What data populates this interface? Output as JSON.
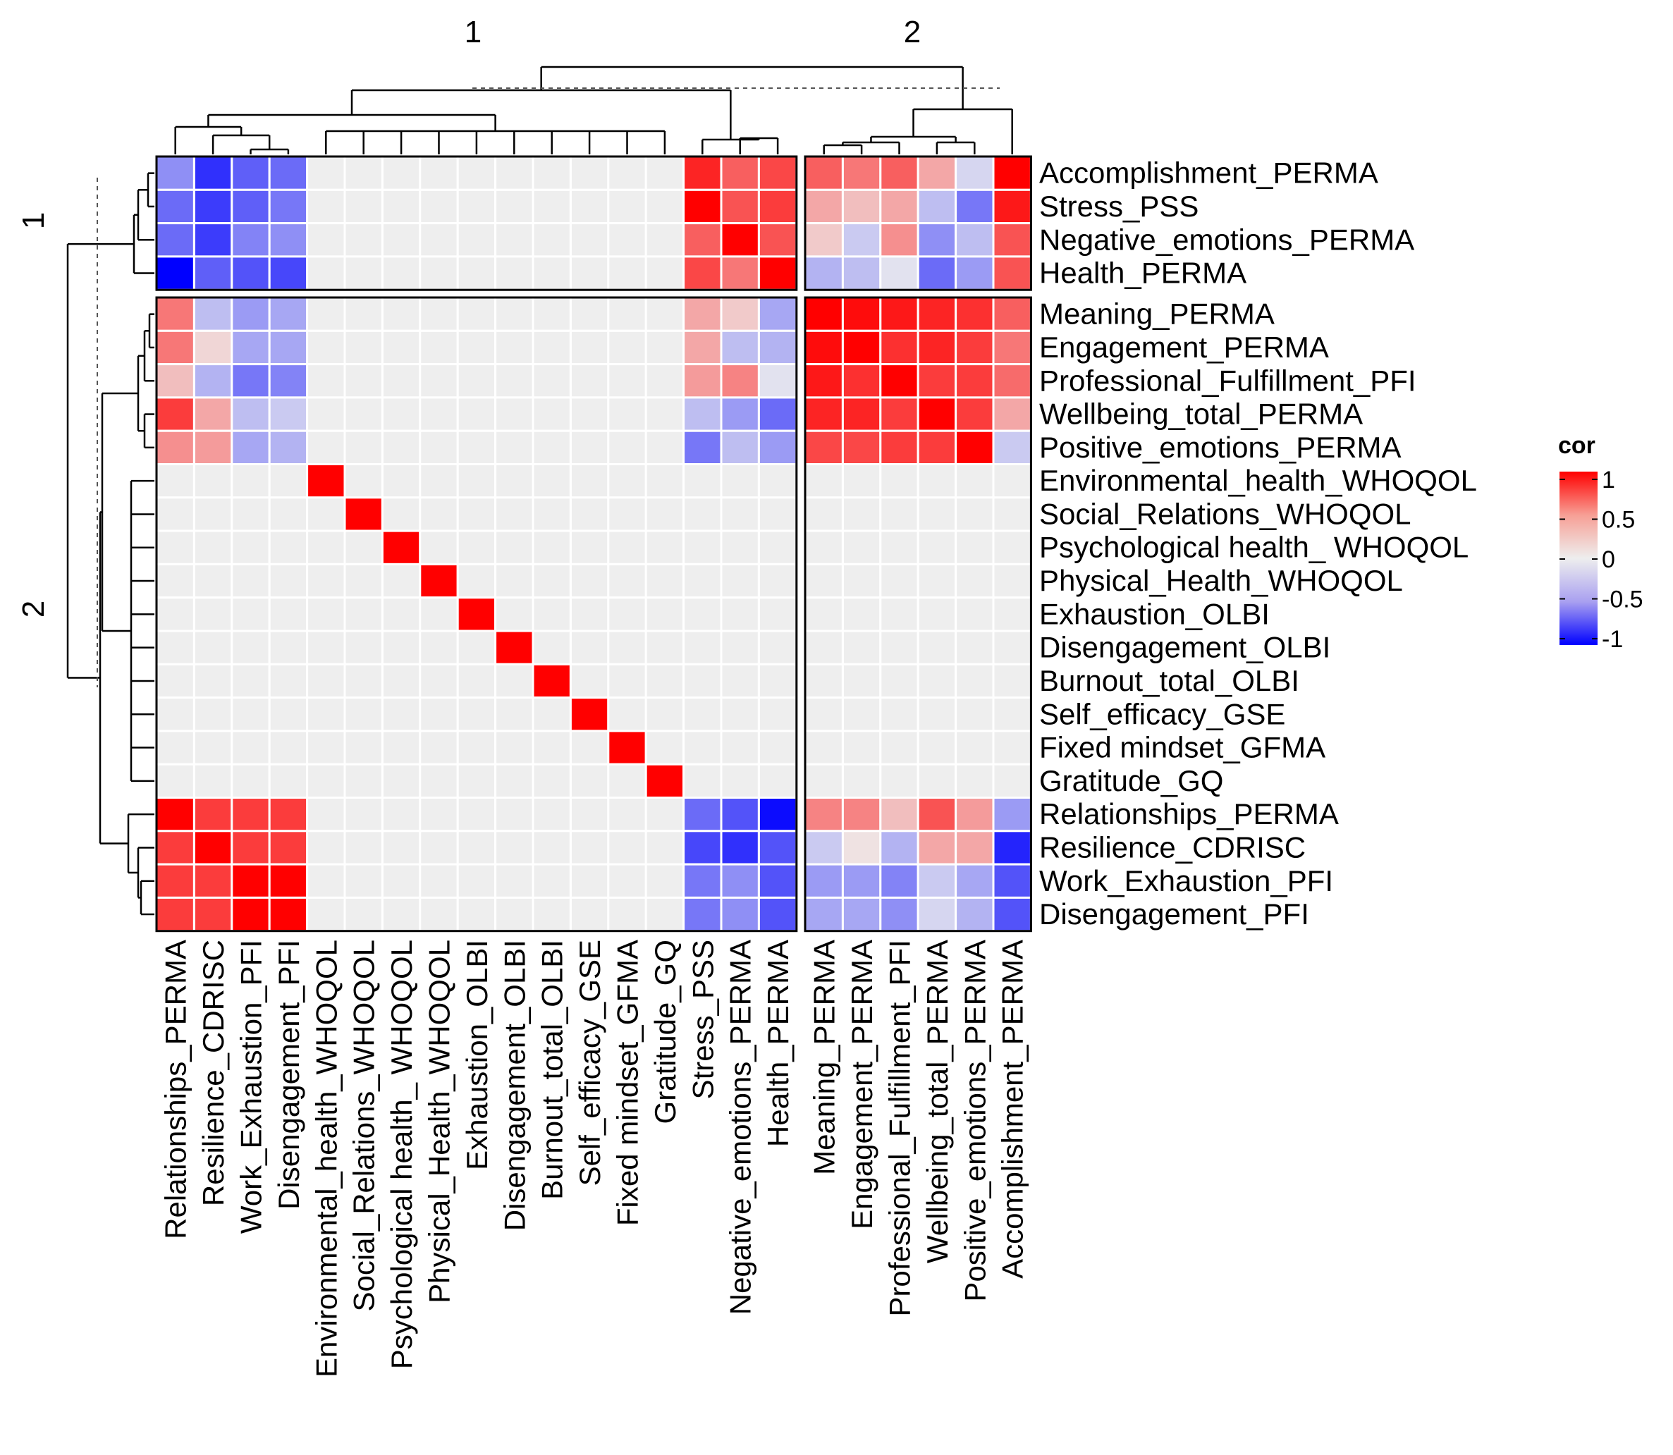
{
  "chart_data": {
    "type": "heatmap",
    "legend": {
      "title": "cor",
      "ticks": [
        1,
        0.5,
        0,
        -0.5,
        -1
      ],
      "tick_labels": [
        "1",
        "0.5",
        "0",
        "-0.5",
        "-1"
      ],
      "colors": {
        "high": "#ff0000",
        "mid": "#eeeeee",
        "low": "#0000ff"
      },
      "na_color": "#eeeeee",
      "placement": "right"
    },
    "column_split_labels": [
      "1",
      "2"
    ],
    "row_split_labels": [
      "1",
      "2"
    ],
    "column_split_sizes": [
      17,
      6
    ],
    "row_split_sizes": [
      4,
      19
    ],
    "columns": [
      "Relationships_PERMA",
      "Resilience_CDRISC",
      "Work_Exhaustion_PFI",
      "Disengagement_PFI",
      "Environmental_health_WHOQOL",
      "Social_Relations_WHOQOL",
      "Psychological health_ WHOQOL",
      "Physical_Health_WHOQOL",
      "Exhaustion_OLBI",
      "Disengagement_OLBI",
      "Burnout_total_OLBI",
      "Self_efficacy_GSE",
      "Fixed mindset_GFMA",
      "Gratitude_GQ",
      "Stress_PSS",
      "Negative_emotions_PERMA",
      "Health_PERMA",
      "Meaning_PERMA",
      "Engagement_PERMA",
      "Professional_Fulfillment_PFI",
      "Wellbeing_total_PERMA",
      "Positive_emotions_PERMA",
      "Accomplishment_PERMA"
    ],
    "rows": [
      "Accomplishment_PERMA",
      "Stress_PSS",
      "Negative_emotions_PERMA",
      "Health_PERMA",
      "Meaning_PERMA",
      "Engagement_PERMA",
      "Professional_Fulfillment_PFI",
      "Wellbeing_total_PERMA",
      "Positive_emotions_PERMA",
      "Environmental_health_WHOQOL",
      "Social_Relations_WHOQOL",
      "Psychological health_ WHOQOL",
      "Physical_Health_WHOQOL",
      "Exhaustion_OLBI",
      "Disengagement_OLBI",
      "Burnout_total_OLBI",
      "Self_efficacy_GSE",
      "Fixed mindset_GFMA",
      "Gratitude_GQ",
      "Relationships_PERMA",
      "Resilience_CDRISC",
      "Work_Exhaustion_PFI",
      "Disengagement_PFI"
    ],
    "values": [
      [
        -0.4,
        -0.8,
        -0.6,
        -0.55,
        0,
        0,
        0,
        0,
        0,
        0,
        0,
        0,
        0,
        0,
        0.85,
        0.6,
        0.7,
        0.6,
        0.5,
        0.6,
        0.3,
        -0.1,
        1
      ],
      [
        -0.55,
        -0.75,
        -0.6,
        -0.5,
        0,
        0,
        0,
        0,
        0,
        0,
        0,
        0,
        0,
        0,
        1,
        0.65,
        0.75,
        0.3,
        0.2,
        0.3,
        -0.2,
        -0.5,
        0.9
      ],
      [
        -0.55,
        -0.75,
        -0.45,
        -0.4,
        0,
        0,
        0,
        0,
        0,
        0,
        0,
        0,
        0,
        0,
        0.6,
        1,
        0.65,
        0.15,
        -0.15,
        0.4,
        -0.4,
        -0.2,
        0.65
      ],
      [
        -1,
        -0.6,
        -0.65,
        -0.7,
        0,
        0,
        0,
        0,
        0,
        0,
        0,
        0,
        0,
        0,
        0.7,
        0.5,
        1,
        -0.25,
        -0.2,
        -0.05,
        -0.55,
        -0.35,
        0.65
      ],
      [
        0.5,
        -0.2,
        -0.35,
        -0.3,
        0,
        0,
        0,
        0,
        0,
        0,
        0,
        0,
        0,
        0,
        0.3,
        0.15,
        -0.3,
        1,
        0.95,
        0.9,
        0.85,
        0.8,
        0.6
      ],
      [
        0.5,
        0.1,
        -0.3,
        -0.3,
        0,
        0,
        0,
        0,
        0,
        0,
        0,
        0,
        0,
        0,
        0.3,
        -0.2,
        -0.25,
        0.95,
        1,
        0.8,
        0.85,
        0.75,
        0.5
      ],
      [
        0.2,
        -0.25,
        -0.5,
        -0.45,
        0,
        0,
        0,
        0,
        0,
        0,
        0,
        0,
        0,
        0,
        0.35,
        0.45,
        -0.05,
        0.9,
        0.8,
        1,
        0.75,
        0.75,
        0.55
      ],
      [
        0.75,
        0.3,
        -0.2,
        -0.15,
        0,
        0,
        0,
        0,
        0,
        0,
        0,
        0,
        0,
        0,
        -0.2,
        -0.35,
        -0.55,
        0.85,
        0.85,
        0.75,
        1,
        0.75,
        0.3
      ],
      [
        0.4,
        0.35,
        -0.3,
        -0.25,
        0,
        0,
        0,
        0,
        0,
        0,
        0,
        0,
        0,
        0,
        -0.5,
        -0.2,
        -0.35,
        0.7,
        0.7,
        0.75,
        0.75,
        1,
        -0.15
      ],
      [
        0,
        0,
        0,
        0,
        1,
        0,
        0,
        0,
        0,
        0,
        0,
        0,
        0,
        0,
        0,
        0,
        0,
        0,
        0,
        0,
        0,
        0,
        0
      ],
      [
        0,
        0,
        0,
        0,
        0,
        1,
        0,
        0,
        0,
        0,
        0,
        0,
        0,
        0,
        0,
        0,
        0,
        0,
        0,
        0,
        0,
        0,
        0
      ],
      [
        0,
        0,
        0,
        0,
        0,
        0,
        1,
        0,
        0,
        0,
        0,
        0,
        0,
        0,
        0,
        0,
        0,
        0,
        0,
        0,
        0,
        0,
        0
      ],
      [
        0,
        0,
        0,
        0,
        0,
        0,
        0,
        1,
        0,
        0,
        0,
        0,
        0,
        0,
        0,
        0,
        0,
        0,
        0,
        0,
        0,
        0,
        0
      ],
      [
        0,
        0,
        0,
        0,
        0,
        0,
        0,
        0,
        1,
        0,
        0,
        0,
        0,
        0,
        0,
        0,
        0,
        0,
        0,
        0,
        0,
        0,
        0
      ],
      [
        0,
        0,
        0,
        0,
        0,
        0,
        0,
        0,
        0,
        1,
        0,
        0,
        0,
        0,
        0,
        0,
        0,
        0,
        0,
        0,
        0,
        0,
        0
      ],
      [
        0,
        0,
        0,
        0,
        0,
        0,
        0,
        0,
        0,
        0,
        1,
        0,
        0,
        0,
        0,
        0,
        0,
        0,
        0,
        0,
        0,
        0,
        0
      ],
      [
        0,
        0,
        0,
        0,
        0,
        0,
        0,
        0,
        0,
        0,
        0,
        1,
        0,
        0,
        0,
        0,
        0,
        0,
        0,
        0,
        0,
        0,
        0
      ],
      [
        0,
        0,
        0,
        0,
        0,
        0,
        0,
        0,
        0,
        0,
        0,
        0,
        1,
        0,
        0,
        0,
        0,
        0,
        0,
        0,
        0,
        0,
        0
      ],
      [
        0,
        0,
        0,
        0,
        0,
        0,
        0,
        0,
        0,
        0,
        0,
        0,
        0,
        1,
        0,
        0,
        0,
        0,
        0,
        0,
        0,
        0,
        0
      ],
      [
        1,
        0.75,
        0.75,
        0.75,
        0,
        0,
        0,
        0,
        0,
        0,
        0,
        0,
        0,
        0,
        -0.55,
        -0.65,
        -0.95,
        0.45,
        0.45,
        0.2,
        0.65,
        0.35,
        -0.35
      ],
      [
        0.75,
        1,
        0.75,
        0.75,
        0,
        0,
        0,
        0,
        0,
        0,
        0,
        0,
        0,
        0,
        -0.7,
        -0.8,
        -0.65,
        -0.15,
        0.05,
        -0.25,
        0.3,
        0.3,
        -0.85
      ],
      [
        0.75,
        0.75,
        1,
        1,
        0,
        0,
        0,
        0,
        0,
        0,
        0,
        0,
        0,
        0,
        -0.5,
        -0.4,
        -0.65,
        -0.35,
        -0.35,
        -0.45,
        -0.15,
        -0.3,
        -0.65
      ],
      [
        0.75,
        0.75,
        1,
        1,
        0,
        0,
        0,
        0,
        0,
        0,
        0,
        0,
        0,
        0,
        -0.5,
        -0.4,
        -0.65,
        -0.3,
        -0.3,
        -0.4,
        -0.1,
        -0.25,
        -0.65
      ]
    ]
  }
}
